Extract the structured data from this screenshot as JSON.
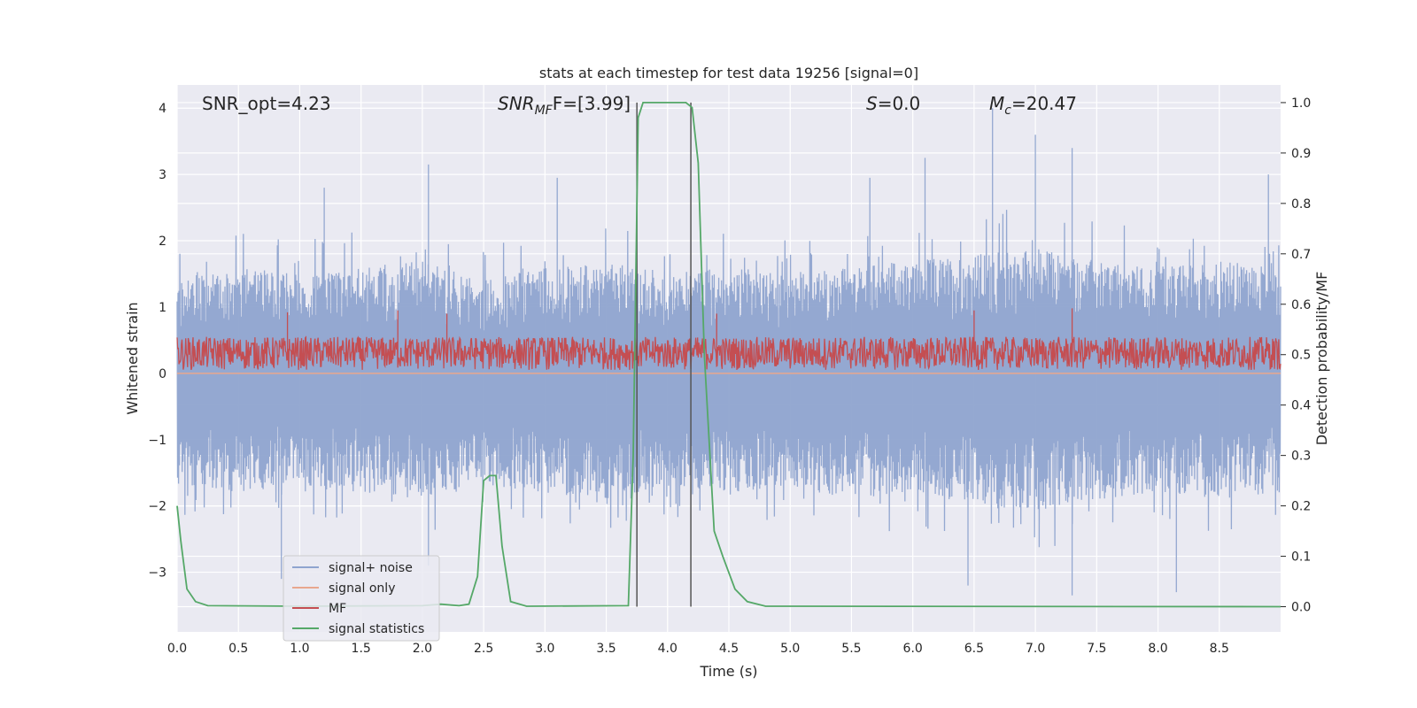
{
  "chart_data": {
    "type": "line",
    "title": "stats at each timestep for test data 19256 [signal=0]",
    "xlabel": "Time (s)",
    "ylabel_left": "Whitened strain",
    "ylabel_right": "Detection probability/MF",
    "xlim": [
      0,
      9.0
    ],
    "ylim_left": [
      -3.9,
      4.35
    ],
    "ylim_right": [
      -0.05,
      1.035
    ],
    "x_ticks": [
      "0.0",
      "0.5",
      "1.0",
      "1.5",
      "2.0",
      "2.5",
      "3.0",
      "3.5",
      "4.0",
      "4.5",
      "5.0",
      "5.5",
      "6.0",
      "6.5",
      "7.0",
      "7.5",
      "8.0",
      "8.5"
    ],
    "y_ticks_left": [
      "4",
      "3",
      "2",
      "1",
      "0",
      "−1",
      "−2",
      "−3"
    ],
    "y_ticks_right": [
      "1.0",
      "0.9",
      "0.8",
      "0.7",
      "0.6",
      "0.5",
      "0.4",
      "0.3",
      "0.2",
      "0.1",
      "0.0"
    ],
    "grid": true,
    "legend_position": "lower-left",
    "annotations": {
      "snr_opt": "SNR_opt=4.23",
      "snr_mf_main": "SNR",
      "snr_mf_sub": "MF",
      "snr_mf_rest": "F=[3.99]",
      "s_main": "S",
      "s_rest": "=0.0",
      "mc_main": "M",
      "mc_sub": "c",
      "mc_rest": "=20.47"
    },
    "vertical_lines_x": [
      3.75,
      4.19
    ],
    "series": [
      {
        "name": "signal+ noise",
        "color": "#8fa4cf",
        "axis": "left",
        "envelope_upper": [
          [
            0,
            1.4
          ],
          [
            0.5,
            1.6
          ],
          [
            1.0,
            1.5
          ],
          [
            1.5,
            1.6
          ],
          [
            2.0,
            1.7
          ],
          [
            2.5,
            1.4
          ],
          [
            3.0,
            1.6
          ],
          [
            3.5,
            1.7
          ],
          [
            4.0,
            1.5
          ],
          [
            4.5,
            1.6
          ],
          [
            5.0,
            1.5
          ],
          [
            5.5,
            1.6
          ],
          [
            6.0,
            1.7
          ],
          [
            6.5,
            1.8
          ],
          [
            7.0,
            1.9
          ],
          [
            7.5,
            1.7
          ],
          [
            8.0,
            1.6
          ],
          [
            8.5,
            1.7
          ],
          [
            9.0,
            1.6
          ]
        ],
        "envelope_lower": [
          [
            0,
            -1.7
          ],
          [
            0.5,
            -1.8
          ],
          [
            1.0,
            -1.7
          ],
          [
            1.5,
            -1.8
          ],
          [
            2.0,
            -1.9
          ],
          [
            2.5,
            -1.7
          ],
          [
            3.0,
            -1.8
          ],
          [
            3.5,
            -1.9
          ],
          [
            4.0,
            -1.7
          ],
          [
            4.5,
            -1.8
          ],
          [
            5.0,
            -1.7
          ],
          [
            5.5,
            -1.9
          ],
          [
            6.0,
            -1.8
          ],
          [
            6.5,
            -2.0
          ],
          [
            7.0,
            -2.1
          ],
          [
            7.5,
            -1.9
          ],
          [
            8.0,
            -1.8
          ],
          [
            8.5,
            -1.9
          ],
          [
            9.0,
            -1.8
          ]
        ],
        "peaks_up": [
          [
            1.2,
            2.8
          ],
          [
            2.05,
            3.15
          ],
          [
            3.1,
            2.95
          ],
          [
            5.65,
            2.95
          ],
          [
            6.1,
            3.25
          ],
          [
            6.65,
            4.0
          ],
          [
            7.0,
            3.6
          ],
          [
            7.3,
            3.4
          ],
          [
            8.9,
            3.0
          ]
        ],
        "peaks_down": [
          [
            0.85,
            -3.1
          ],
          [
            2.05,
            -2.9
          ],
          [
            6.45,
            -3.2
          ],
          [
            7.3,
            -3.35
          ],
          [
            8.15,
            -3.3
          ]
        ]
      },
      {
        "name": "signal only",
        "color": "#e8a78e",
        "axis": "left",
        "points": [
          [
            0,
            0
          ],
          [
            9.0,
            0
          ]
        ]
      },
      {
        "name": "MF",
        "color": "#c44e52",
        "axis": "left",
        "band_lower": 0.05,
        "band_upper": 0.55,
        "peaks": [
          [
            0.9,
            0.92
          ],
          [
            1.8,
            0.95
          ],
          [
            2.2,
            0.9
          ],
          [
            3.75,
            0.95
          ],
          [
            4.4,
            0.9
          ],
          [
            6.5,
            0.95
          ],
          [
            7.3,
            0.98
          ]
        ]
      },
      {
        "name": "signal statistics",
        "color": "#55a868",
        "axis": "right",
        "points": [
          [
            0,
            0.2
          ],
          [
            0.03,
            0.13
          ],
          [
            0.08,
            0.035
          ],
          [
            0.15,
            0.01
          ],
          [
            0.25,
            0.002
          ],
          [
            1.0,
            0.001
          ],
          [
            2.0,
            0.002
          ],
          [
            2.15,
            0.005
          ],
          [
            2.3,
            0.002
          ],
          [
            2.38,
            0.005
          ],
          [
            2.45,
            0.06
          ],
          [
            2.5,
            0.25
          ],
          [
            2.55,
            0.26
          ],
          [
            2.6,
            0.26
          ],
          [
            2.65,
            0.12
          ],
          [
            2.72,
            0.01
          ],
          [
            2.85,
            0.001
          ],
          [
            3.68,
            0.002
          ],
          [
            3.72,
            0.3
          ],
          [
            3.76,
            0.97
          ],
          [
            3.8,
            1.0
          ],
          [
            4.15,
            1.0
          ],
          [
            4.2,
            0.99
          ],
          [
            4.25,
            0.88
          ],
          [
            4.3,
            0.5
          ],
          [
            4.38,
            0.15
          ],
          [
            4.45,
            0.1
          ],
          [
            4.55,
            0.035
          ],
          [
            4.65,
            0.01
          ],
          [
            4.8,
            0.001
          ],
          [
            9.0,
            0.0
          ]
        ]
      }
    ]
  }
}
